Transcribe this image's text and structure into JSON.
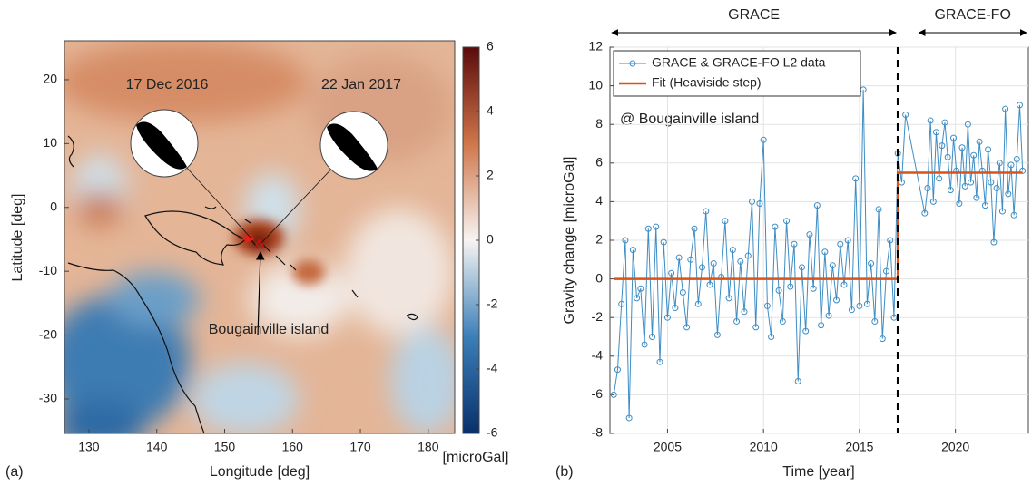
{
  "chart_data": [
    {
      "type": "map",
      "panel_label": "(a)",
      "xlabel": "Longitude [deg]",
      "ylabel": "Latitude [deg]",
      "xlim": [
        126.4,
        183.9
      ],
      "ylim": [
        -35.4,
        26.1
      ],
      "xticks": [
        130,
        140,
        150,
        160,
        170,
        180
      ],
      "yticks": [
        -30,
        -20,
        -10,
        0,
        10,
        20
      ],
      "colorbar": {
        "label": "[microGal]",
        "lim": [
          -6,
          6
        ],
        "ticks": [
          -6,
          -4,
          -2,
          0,
          2,
          4,
          6
        ]
      },
      "annotations": [
        "17 Dec 2016",
        "22 Jan 2017",
        "Bougainville island"
      ]
    },
    {
      "type": "line",
      "panel_label": "(b)",
      "xlabel": "Time [year]",
      "ylabel": "Gravity change [microGal]",
      "xlim": [
        2002,
        2023.8
      ],
      "ylim": [
        -8,
        12
      ],
      "xticks": [
        2005,
        2010,
        2015,
        2020
      ],
      "yticks": [
        -8,
        -6,
        -4,
        -2,
        0,
        2,
        4,
        6,
        8,
        10,
        12
      ],
      "grid": true,
      "legend": "upper left",
      "annotation": "@ Bougainville island",
      "vline": 2017,
      "periods": [
        {
          "name": "GRACE",
          "range": [
            2002,
            2017
          ]
        },
        {
          "name": "GRACE-FO",
          "range": [
            2018,
            2023.8
          ]
        }
      ],
      "series": [
        {
          "name": "GRACE & GRACE-FO L2 data",
          "color": "#3d8dc4",
          "marker": "circle",
          "x": [
            2002.2,
            2002.4,
            2002.6,
            2002.8,
            2003.0,
            2003.2,
            2003.4,
            2003.6,
            2003.8,
            2004.0,
            2004.2,
            2004.4,
            2004.6,
            2004.8,
            2005.0,
            2005.2,
            2005.4,
            2005.6,
            2005.8,
            2006.0,
            2006.2,
            2006.4,
            2006.6,
            2006.8,
            2007.0,
            2007.2,
            2007.4,
            2007.6,
            2007.8,
            2008.0,
            2008.2,
            2008.4,
            2008.6,
            2008.8,
            2009.0,
            2009.2,
            2009.4,
            2009.6,
            2009.8,
            2010.0,
            2010.2,
            2010.4,
            2010.6,
            2010.8,
            2011.0,
            2011.2,
            2011.4,
            2011.6,
            2011.8,
            2012.0,
            2012.2,
            2012.4,
            2012.6,
            2012.8,
            2013.0,
            2013.2,
            2013.4,
            2013.6,
            2013.8,
            2014.0,
            2014.2,
            2014.4,
            2014.6,
            2014.8,
            2015.0,
            2015.2,
            2015.4,
            2015.6,
            2015.8,
            2016.0,
            2016.2,
            2016.4,
            2016.6,
            2016.8,
            2017.0,
            2017.2,
            2017.4,
            2018.4,
            2018.55,
            2018.7,
            2018.85,
            2019.0,
            2019.15,
            2019.3,
            2019.45,
            2019.6,
            2019.75,
            2019.9,
            2020.05,
            2020.2,
            2020.35,
            2020.5,
            2020.65,
            2020.8,
            2020.95,
            2021.1,
            2021.25,
            2021.4,
            2021.55,
            2021.7,
            2021.85,
            2022.0,
            2022.15,
            2022.3,
            2022.45,
            2022.6,
            2022.75,
            2022.9,
            2023.05,
            2023.2,
            2023.35,
            2023.5
          ],
          "values": [
            -6.0,
            -4.7,
            -1.3,
            2.0,
            -7.2,
            1.5,
            -1.0,
            -0.5,
            -3.4,
            2.6,
            -3.0,
            2.7,
            -4.3,
            1.9,
            -2.0,
            0.3,
            -1.5,
            1.1,
            -0.7,
            -2.5,
            1.0,
            2.6,
            -1.3,
            0.6,
            3.5,
            -0.3,
            0.8,
            -2.9,
            0.1,
            3.0,
            -1.0,
            1.5,
            -2.2,
            0.9,
            -1.7,
            1.2,
            4.0,
            -2.5,
            3.9,
            7.2,
            -1.4,
            -3.0,
            2.7,
            -0.6,
            -2.2,
            3.0,
            -0.4,
            1.8,
            -5.3,
            0.6,
            -2.7,
            2.3,
            -0.5,
            3.8,
            -2.4,
            1.4,
            -1.9,
            0.7,
            -1.1,
            1.8,
            -0.3,
            2.0,
            -1.6,
            5.2,
            -1.4,
            9.8,
            -1.3,
            0.8,
            -2.2,
            3.6,
            -3.1,
            0.4,
            2.0,
            -2.0,
            6.5,
            5.0,
            8.5,
            3.4,
            4.7,
            8.2,
            4.0,
            7.6,
            5.2,
            6.9,
            8.1,
            6.3,
            4.6,
            7.3,
            5.6,
            3.9,
            6.8,
            4.8,
            8.0,
            5.0,
            6.4,
            4.2,
            7.1,
            5.6,
            3.8,
            6.7,
            5.0,
            1.9,
            4.7,
            6.0,
            3.5,
            8.8,
            4.4,
            5.9,
            3.3,
            6.2,
            9.0,
            5.6
          ]
        },
        {
          "name": "Fit (Heaviside step)",
          "color": "#d95319",
          "marker": "none",
          "x": [
            2002.2,
            2017.0,
            2017.0,
            2023.5
          ],
          "values": [
            0,
            0,
            5.5,
            5.5
          ]
        }
      ]
    }
  ]
}
